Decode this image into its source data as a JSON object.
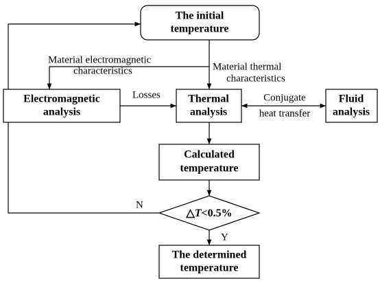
{
  "nodes": [
    {
      "label": [
        "The initial",
        "temperature"
      ]
    },
    {
      "label": [
        "Electromagnetic",
        "analysis"
      ]
    },
    {
      "label": [
        "Thermal",
        "analysis"
      ]
    },
    {
      "label": [
        "Fluid",
        "analysis"
      ]
    },
    {
      "label": [
        "Calculated",
        "temperature"
      ]
    },
    {
      "label": {
        "symbol": "△",
        "variable": "T",
        "rest": "<0.5%"
      }
    },
    {
      "label": [
        "The determined",
        "temperature"
      ]
    }
  ],
  "edges": [
    {
      "label": [
        "Material electromagnetic",
        "characteristics"
      ]
    },
    {
      "label": [
        "Material thermal",
        "characteristics"
      ]
    },
    {
      "label": [
        "Losses"
      ]
    },
    {
      "label": [
        "Conjugate",
        "heat transfer"
      ]
    },
    {
      "label": [
        "N"
      ]
    },
    {
      "label": [
        "Y"
      ]
    }
  ]
}
